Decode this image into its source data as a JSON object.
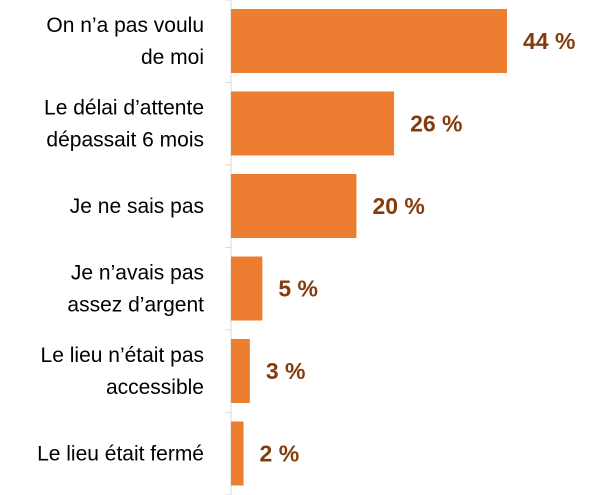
{
  "chart_data": {
    "type": "bar",
    "orientation": "horizontal",
    "categories": [
      [
        "On n’a pas voulu",
        "de moi"
      ],
      [
        "Le délai d’attente",
        "dépassait 6 mois"
      ],
      [
        "Je ne sais pas"
      ],
      [
        "Je n’avais pas",
        "assez d’argent"
      ],
      [
        "Le lieu n’était pas",
        "accessible"
      ],
      [
        "Le lieu était fermé"
      ]
    ],
    "values": [
      44,
      26,
      20,
      5,
      3,
      2
    ],
    "value_labels": [
      "44 %",
      "26 %",
      "20 %",
      "5 %",
      "3 %",
      "2 %"
    ],
    "unit": "%",
    "xlim": [
      0,
      48
    ],
    "grid": false,
    "legend": "none"
  },
  "colors": {
    "bar": "#ed7d31",
    "value_label": "#843c0c",
    "axis": "#d9d9d9"
  }
}
